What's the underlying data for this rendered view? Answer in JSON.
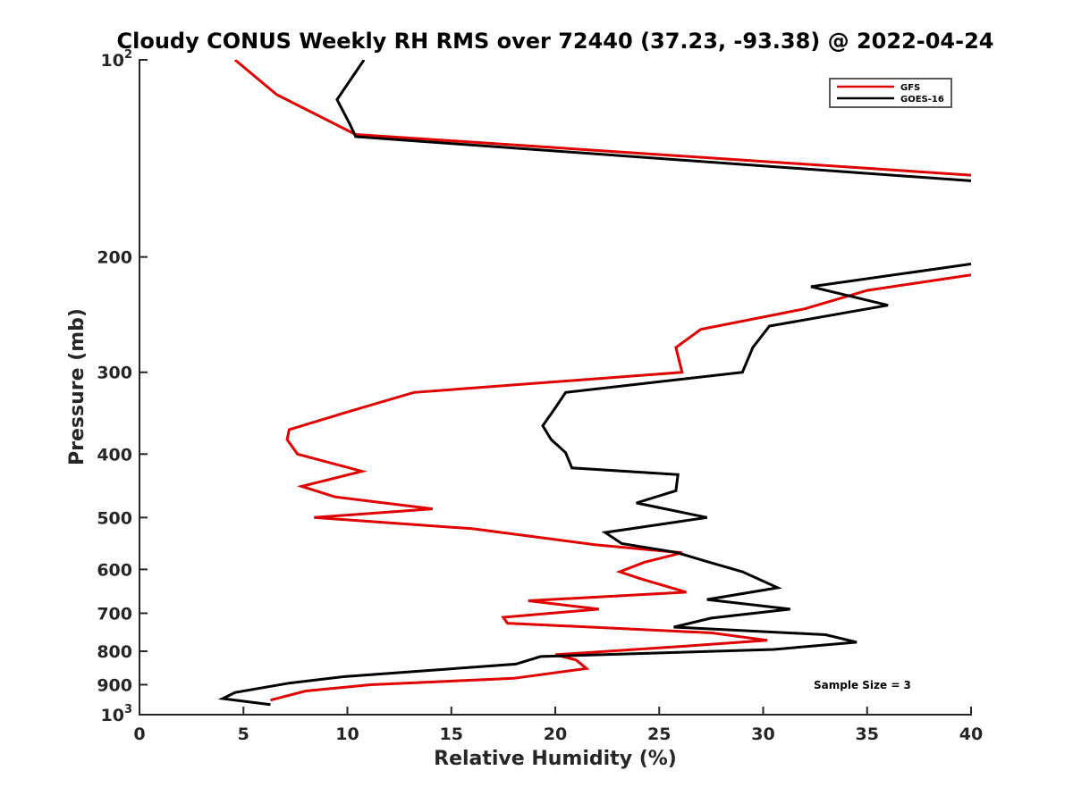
{
  "chart_data": {
    "type": "line",
    "title": "Cloudy CONUS Weekly RH RMS over 72440 (37.23, -93.38) @ 2022-04-24",
    "xlabel": "Relative Humidity (%)",
    "ylabel": "Pressure (mb)",
    "xlim": [
      0,
      40
    ],
    "ylim": [
      100,
      1000
    ],
    "y_scale": "log",
    "y_reversed": true,
    "x_ticks": [
      "0",
      "5",
      "10",
      "15",
      "20",
      "25",
      "30",
      "35",
      "40"
    ],
    "y_ticks": [
      {
        "value": 100,
        "base": "10",
        "exp": "2"
      },
      {
        "value": 200,
        "base": "200",
        "exp": ""
      },
      {
        "value": 300,
        "base": "300",
        "exp": ""
      },
      {
        "value": 400,
        "base": "400",
        "exp": ""
      },
      {
        "value": 500,
        "base": "500",
        "exp": ""
      },
      {
        "value": 600,
        "base": "600",
        "exp": ""
      },
      {
        "value": 700,
        "base": "700",
        "exp": ""
      },
      {
        "value": 800,
        "base": "800",
        "exp": ""
      },
      {
        "value": 900,
        "base": "900",
        "exp": ""
      },
      {
        "value": 1000,
        "base": "10",
        "exp": "3"
      }
    ],
    "grid": false,
    "legend_position": "top-right",
    "series": [
      {
        "name": "GFS",
        "color": "#e00000",
        "points": [
          [
            4.6,
            100
          ],
          [
            6.6,
            113
          ],
          [
            10.4,
            130
          ],
          [
            40,
            150
          ],
          [
            40.5,
            152
          ],
          [
            null,
            null
          ],
          [
            40.5,
            212
          ],
          [
            40,
            213
          ],
          [
            35,
            225
          ],
          [
            32,
            240
          ],
          [
            27,
            258
          ],
          [
            25.8,
            275
          ],
          [
            26.1,
            300
          ],
          [
            13.2,
            322
          ],
          [
            10,
            345
          ],
          [
            7.2,
            367
          ],
          [
            7.1,
            380
          ],
          [
            7.6,
            400
          ],
          [
            10.7,
            425
          ],
          [
            7.8,
            448
          ],
          [
            9.4,
            465
          ],
          [
            14.1,
            485
          ],
          [
            8.4,
            500
          ],
          [
            16,
            520
          ],
          [
            21.9,
            550
          ],
          [
            26.1,
            566
          ],
          [
            24.3,
            585
          ],
          [
            23.1,
            605
          ],
          [
            24.1,
            620
          ],
          [
            26.3,
            650
          ],
          [
            18.7,
            670
          ],
          [
            22.1,
            690
          ],
          [
            17.5,
            710
          ],
          [
            17.7,
            725
          ],
          [
            27.5,
            750
          ],
          [
            30.2,
            770
          ],
          [
            26.5,
            785
          ],
          [
            20,
            810
          ],
          [
            21,
            825
          ],
          [
            21.5,
            850
          ],
          [
            18,
            880
          ],
          [
            11.1,
            900
          ],
          [
            8,
            920
          ],
          [
            6.3,
            950
          ]
        ]
      },
      {
        "name": "GOES-16",
        "color": "#000000",
        "points": [
          [
            10.8,
            100
          ],
          [
            9.5,
            115
          ],
          [
            10.1,
            125
          ],
          [
            10.4,
            131
          ],
          [
            40,
            153
          ],
          [
            40.5,
            154
          ],
          [
            null,
            null
          ],
          [
            40.5,
            204
          ],
          [
            40,
            205
          ],
          [
            32.3,
            222
          ],
          [
            36,
            237
          ],
          [
            30.3,
            255
          ],
          [
            29.5,
            275
          ],
          [
            29,
            300
          ],
          [
            20.5,
            322
          ],
          [
            20,
            340
          ],
          [
            19.4,
            362
          ],
          [
            19.8,
            380
          ],
          [
            20.5,
            398
          ],
          [
            20.8,
            420
          ],
          [
            25.9,
            430
          ],
          [
            25.8,
            455
          ],
          [
            23.9,
            475
          ],
          [
            27.3,
            500
          ],
          [
            22.4,
            527
          ],
          [
            23.2,
            548
          ],
          [
            25.8,
            565
          ],
          [
            27.4,
            585
          ],
          [
            29,
            605
          ],
          [
            30.7,
            640
          ],
          [
            27.3,
            667
          ],
          [
            31.3,
            690
          ],
          [
            27.5,
            712
          ],
          [
            25.7,
            735
          ],
          [
            33,
            755
          ],
          [
            34.5,
            775
          ],
          [
            30.5,
            795
          ],
          [
            19.3,
            815
          ],
          [
            18.1,
            837
          ],
          [
            9.8,
            875
          ],
          [
            7.2,
            895
          ],
          [
            4.6,
            925
          ],
          [
            4,
            945
          ],
          [
            6.3,
            965
          ]
        ]
      }
    ],
    "annotations": [
      "Sample Size = 3"
    ]
  }
}
